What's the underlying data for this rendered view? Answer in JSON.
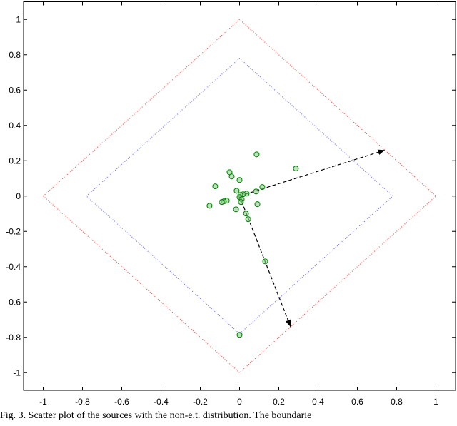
{
  "chart_data": {
    "type": "scatter",
    "caption": "Fig. 3.   Scatter plot of the sources with the non-e.t. distribution. The boundarie",
    "xlim": [
      -1.1,
      1.1
    ],
    "ylim": [
      -1.1,
      1.1
    ],
    "xticks": [
      -1,
      -0.8,
      -0.6,
      -0.4,
      -0.2,
      0,
      0.2,
      0.4,
      0.6,
      0.8,
      1
    ],
    "yticks": [
      -1,
      -0.8,
      -0.6,
      -0.4,
      -0.2,
      0,
      0.2,
      0.4,
      0.6,
      0.8,
      1
    ],
    "lines": [
      {
        "color": "#ff5555",
        "x": [
          -1,
          0,
          1,
          0,
          -1
        ],
        "y": [
          0,
          1,
          0,
          -1,
          0
        ]
      },
      {
        "color": "#7777ff",
        "x": [
          -0.78,
          0,
          0.78,
          0,
          -0.78
        ],
        "y": [
          0,
          0.78,
          0,
          -0.78,
          0
        ]
      }
    ],
    "arrows": [
      {
        "color": "#000000",
        "x": [
          0,
          0.74
        ],
        "y": [
          0,
          0.26
        ]
      },
      {
        "color": "#000000",
        "x": [
          0,
          0.26
        ],
        "y": [
          0,
          -0.74
        ]
      }
    ],
    "series": [
      {
        "color": "#008000",
        "x": [
          0.087,
          0.287,
          -0.051,
          -0.04,
          0,
          -0.124,
          0.116,
          -0.015,
          0.084,
          0.036,
          0.018,
          0.004,
          0,
          0.011,
          -0.065,
          -0.08,
          -0.091,
          0.007,
          0.091,
          -0.153,
          -0.018,
          0.033,
          0.044,
          0.131,
          0
        ],
        "y": [
          0.236,
          0.156,
          0.135,
          0.111,
          0.091,
          0.055,
          0.051,
          0.03,
          0.026,
          0.014,
          0.01,
          0.006,
          -0.006,
          -0.018,
          -0.026,
          -0.03,
          -0.034,
          -0.034,
          -0.046,
          -0.055,
          -0.075,
          -0.099,
          -0.131,
          -0.37,
          -0.786
        ]
      }
    ]
  }
}
